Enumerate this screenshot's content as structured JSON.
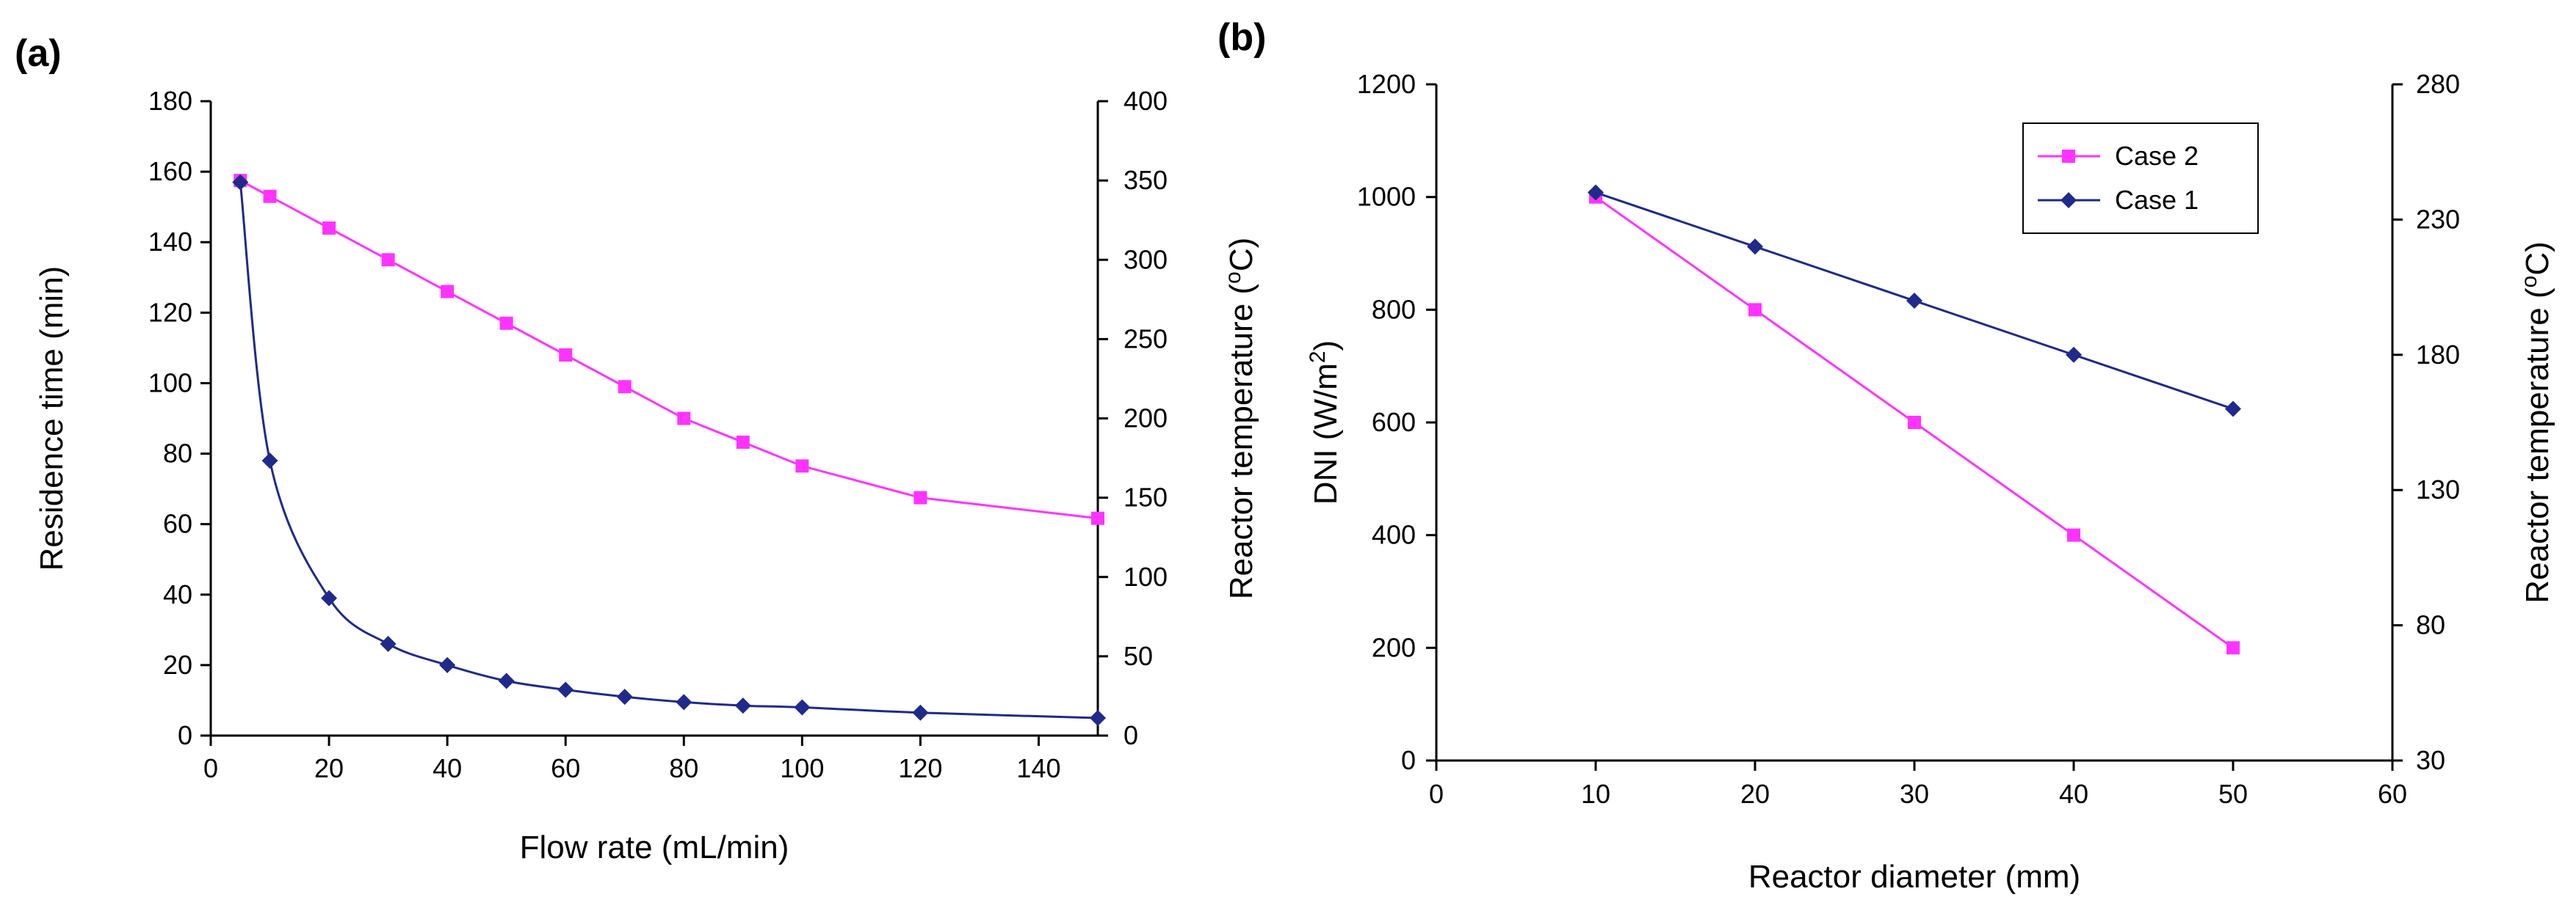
{
  "chart_data": [
    {
      "panel": "(a)",
      "type": "line",
      "xlabel": "Flow rate (mL/min)",
      "ylabel": "Residence time (min)",
      "y2label": "Reactor temperature (oC)",
      "y2label_base": "Reactor temperature (",
      "y2label_sup": "o",
      "y2label_end": "C)",
      "xlim": [
        0,
        150
      ],
      "ylim": [
        0,
        180
      ],
      "y2lim": [
        0,
        400
      ],
      "xticks": [
        0,
        20,
        40,
        60,
        80,
        100,
        120,
        140
      ],
      "yticks": [
        0,
        20,
        40,
        60,
        80,
        100,
        120,
        140,
        160,
        180
      ],
      "y2ticks": [
        0,
        50,
        100,
        150,
        200,
        250,
        300,
        350,
        400
      ],
      "legend": false,
      "series": [
        {
          "name": "Reactor temperature",
          "axis": "y2",
          "color": "#ff33ff",
          "marker": "square",
          "smooth": false,
          "x": [
            5,
            10,
            20,
            30,
            40,
            50,
            60,
            70,
            80,
            90,
            100,
            120,
            150
          ],
          "y": [
            350,
            340,
            320,
            300,
            280,
            260,
            240,
            220,
            200,
            185,
            170,
            150,
            137
          ]
        },
        {
          "name": "Residence time",
          "axis": "y",
          "color": "#1f2a8a",
          "marker": "diamond",
          "smooth": true,
          "x": [
            5,
            10,
            20,
            30,
            40,
            50,
            60,
            70,
            80,
            90,
            100,
            120,
            150
          ],
          "y": [
            157,
            78,
            39,
            26,
            20,
            15.5,
            13,
            11,
            9.5,
            8.5,
            8,
            6.5,
            5
          ]
        }
      ]
    },
    {
      "panel": "(b)",
      "type": "line",
      "xlabel": "Reactor diameter (mm)",
      "ylabel": "DNI (W/m2)",
      "ylabel_base": "DNI (W/m",
      "ylabel_sup": "2",
      "ylabel_end": ")",
      "y2label": "Reactor temperature (oC)",
      "y2label_base": "Reactor temperature (",
      "y2label_sup": "o",
      "y2label_end": "C)",
      "xlim": [
        0,
        60
      ],
      "ylim": [
        0,
        1200
      ],
      "y2lim": [
        30,
        280
      ],
      "xticks": [
        0,
        10,
        20,
        30,
        40,
        50,
        60
      ],
      "yticks": [
        0,
        200,
        400,
        600,
        800,
        1000,
        1200
      ],
      "y2ticks": [
        30,
        80,
        130,
        180,
        230,
        280
      ],
      "legend": true,
      "legend_position": "top-right",
      "series": [
        {
          "name": "Case 2",
          "axis": "y",
          "color": "#ff33ff",
          "marker": "square",
          "smooth": false,
          "x": [
            10,
            20,
            30,
            40,
            50
          ],
          "y": [
            1000,
            800,
            600,
            400,
            200
          ]
        },
        {
          "name": "Case 1",
          "axis": "y2",
          "color": "#1f2a8a",
          "marker": "diamond",
          "smooth": false,
          "x": [
            10,
            20,
            30,
            40,
            50
          ],
          "y": [
            240,
            220,
            200,
            180,
            160
          ]
        }
      ]
    }
  ]
}
